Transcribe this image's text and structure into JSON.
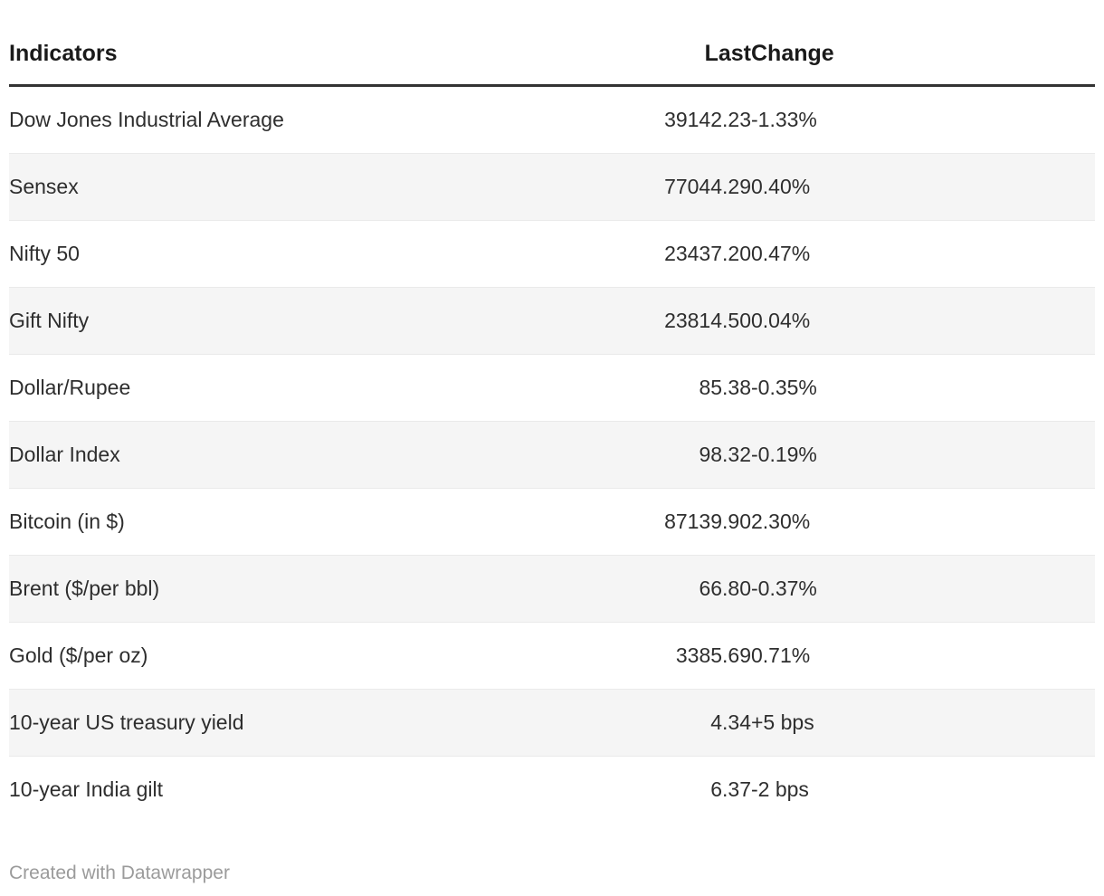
{
  "chart_data": {
    "type": "table",
    "columns": [
      "Indicators",
      "Last",
      "Change"
    ],
    "rows": [
      [
        "Dow Jones Industrial Average",
        "39142.23",
        "-1.33%"
      ],
      [
        "Sensex",
        "77044.29",
        "0.40%"
      ],
      [
        "Nifty 50",
        "23437.20",
        "0.47%"
      ],
      [
        "Gift Nifty",
        "23814.50",
        "0.04%"
      ],
      [
        "Dollar/Rupee",
        "85.38",
        "-0.35%"
      ],
      [
        "Dollar Index",
        "98.32",
        "-0.19%"
      ],
      [
        "Bitcoin (in $)",
        "87139.90",
        "2.30%"
      ],
      [
        "Brent ($/per bbl)",
        "66.80",
        "-0.37%"
      ],
      [
        "Gold ($/per oz)",
        "3385.69",
        "0.71%"
      ],
      [
        "10-year US treasury yield",
        "4.34",
        "+5 bps"
      ],
      [
        "10-year India gilt",
        "6.37",
        "-2 bps"
      ]
    ],
    "layout": {
      "zebra_striping": true,
      "last_column_align": "right",
      "change_column_align": "left"
    }
  },
  "footer": {
    "attribution": "Created with Datawrapper"
  },
  "colors": {
    "header_text": "#1a1a1a",
    "row_text": "#2e2e2e",
    "zebra_stripe": "#f5f5f5",
    "row_divider": "#eaeaea",
    "header_rule": "#333333",
    "attribution_text": "#9b9b9b",
    "background": "#ffffff"
  }
}
